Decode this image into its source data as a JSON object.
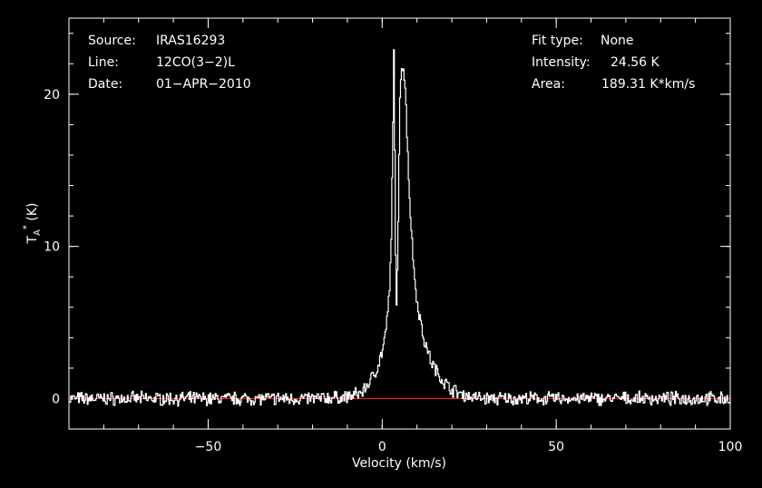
{
  "chart_data": {
    "type": "line",
    "title": "",
    "xlabel": "Velocity (km/s)",
    "ylabel_main": "T",
    "ylabel_sub": "A",
    "ylabel_sup": "*",
    "ylabel_unit": " (K)",
    "xlim": [
      -90,
      100
    ],
    "ylim": [
      -2,
      25
    ],
    "x_ticks": [
      -50,
      0,
      50,
      100
    ],
    "x_tick_labels": [
      "−50",
      "0",
      "50",
      "100"
    ],
    "y_ticks": [
      0,
      10,
      20
    ],
    "y_tick_labels": [
      "0",
      "10",
      "20"
    ],
    "x_minor_step": 10,
    "y_minor_step": 2,
    "grid": false,
    "colors": {
      "background": "#000000",
      "spectrum": "#ffffff",
      "baseline": "#ff2020",
      "axes": "#ffffff"
    },
    "baseline_y": 0,
    "series": [
      {
        "x": [
          -90,
          -80,
          -60,
          -40,
          -20,
          -10,
          -6,
          -4,
          -2,
          -1,
          0,
          1,
          2,
          2.5,
          3,
          3.3,
          3.6,
          4,
          4.3,
          4.6,
          5,
          5.5,
          6,
          6.5,
          7,
          8,
          9,
          10,
          12,
          14,
          16,
          18,
          20,
          22,
          24,
          26,
          30,
          40,
          60,
          80,
          100
        ],
        "y": [
          0,
          0,
          0,
          0,
          0,
          0.1,
          0.4,
          1.0,
          1.8,
          2.4,
          3.2,
          4.5,
          7.0,
          10.5,
          18.0,
          24.4,
          12.0,
          6.0,
          8.5,
          13.0,
          20.0,
          22.0,
          21.8,
          20.5,
          17.5,
          12.0,
          8.5,
          6.2,
          3.8,
          2.4,
          1.6,
          1.0,
          0.6,
          0.35,
          0.2,
          0.1,
          0,
          0,
          0,
          0,
          0
        ]
      }
    ]
  },
  "info_left": [
    {
      "key": "Source:",
      "value": "IRAS16293"
    },
    {
      "key": "Line:",
      "value": "12CO(3−2)L"
    },
    {
      "key": "Date:",
      "value": "01−APR−2010"
    }
  ],
  "info_right": [
    {
      "key": "Fit type:",
      "value": "None"
    },
    {
      "key": "Intensity:",
      "value": "24.56 K"
    },
    {
      "key": "Area:",
      "value": "189.31 K*km/s"
    }
  ]
}
